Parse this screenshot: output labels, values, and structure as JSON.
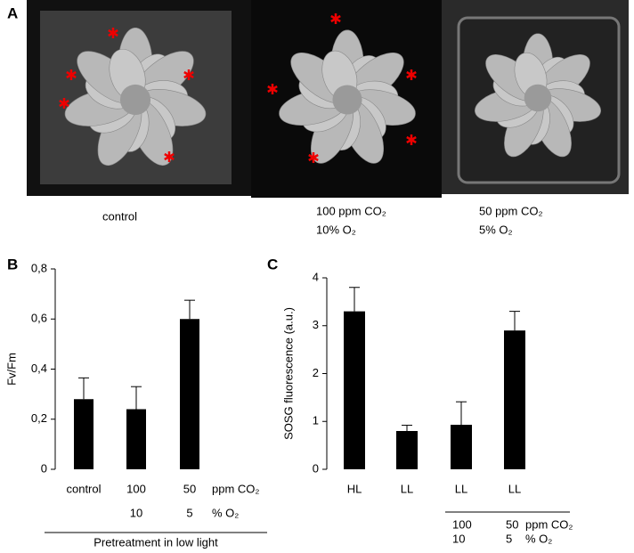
{
  "panel_a": {
    "label": "A",
    "captions": [
      "control",
      "100 ppm CO₂",
      "10% O₂",
      "50 ppm CO₂",
      "5% O₂"
    ]
  },
  "chart_data": [
    {
      "type": "bar",
      "label": "B",
      "ylabel": "Fv/Fm",
      "categories": [
        "control",
        "100",
        "50"
      ],
      "categories_row2": [
        null,
        "10",
        "5"
      ],
      "row_labels": [
        "ppm CO₂",
        "% O₂"
      ],
      "xlabel": "Pretreatment in low light",
      "values": [
        0.28,
        0.24,
        0.6
      ],
      "errors": [
        0.085,
        0.09,
        0.075
      ],
      "color": "#000000",
      "ylim": [
        0,
        0.8
      ],
      "yticks": [
        0,
        {
          "value": 0.2,
          "label": "0,2"
        },
        {
          "value": 0.4,
          "label": "0,4"
        },
        {
          "value": 0.6,
          "label": "0,6"
        },
        {
          "value": 0.8,
          "label": "0,8"
        }
      ]
    },
    {
      "type": "bar",
      "label": "C",
      "ylabel": "SOSG fluorescence (a.u.)",
      "categories": [
        "HL",
        "LL",
        "LL",
        "LL"
      ],
      "categories_row2": [
        null,
        null,
        "100",
        "50"
      ],
      "categories_row3": [
        null,
        null,
        "10",
        "5"
      ],
      "row_labels": [
        "ppm CO₂",
        "% O₂"
      ],
      "values": [
        3.3,
        0.8,
        0.93,
        2.9
      ],
      "errors": [
        0.5,
        0.12,
        0.48,
        0.4
      ],
      "color": "#000000",
      "ylim": [
        0,
        4
      ],
      "yticks": [
        0,
        1,
        2,
        3,
        4
      ]
    }
  ]
}
